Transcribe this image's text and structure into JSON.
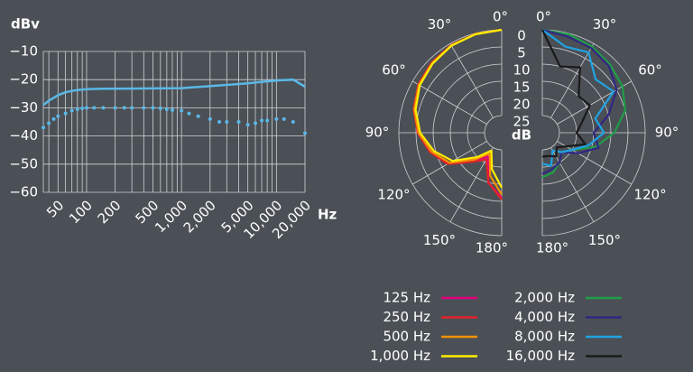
{
  "chart_data": [
    {
      "type": "line",
      "y_label": "dBv",
      "x_label": "Hz",
      "xlog": true,
      "grid": true,
      "xlim": [
        35,
        20000
      ],
      "ylim": [
        -60,
        -10
      ],
      "xticks": [
        50,
        100,
        200,
        500,
        {
          "value": 1000,
          "label": "1,000"
        },
        {
          "value": 2000,
          "label": "2,000"
        },
        {
          "value": 5000,
          "label": "5,000"
        },
        {
          "value": 10000,
          "label": "10,000"
        },
        {
          "value": 20000,
          "label": "20,000"
        }
      ],
      "xgrid": [
        40,
        50,
        60,
        70,
        80,
        90,
        100,
        200,
        300,
        400,
        500,
        600,
        700,
        800,
        900,
        1000,
        2000,
        3000,
        4000,
        5000,
        6000,
        7000,
        8000,
        9000,
        10000,
        20000
      ],
      "yticks": [
        {
          "value": -10,
          "label": "−10"
        },
        {
          "value": -20,
          "label": "−20"
        },
        {
          "value": -30,
          "label": "−30"
        },
        {
          "value": -40,
          "label": "−40"
        },
        {
          "value": -50,
          "label": "−50"
        },
        {
          "value": -60,
          "label": "−60"
        }
      ],
      "series": [
        {
          "color": "#5ab8e6",
          "style": "solid",
          "x": [
            35,
            40,
            50,
            60,
            70,
            80,
            100,
            150,
            200,
            500,
            1000,
            2000,
            5000,
            10000,
            15000,
            20000
          ],
          "values": [
            -29,
            -27.5,
            -25.5,
            -24.5,
            -24,
            -23.7,
            -23.4,
            -23.2,
            -23.2,
            -23.1,
            -23,
            -22.3,
            -21.3,
            -20.3,
            -20,
            -22.5
          ]
        },
        {
          "color": "#5ab8e6",
          "style": "dots",
          "x": [
            35,
            40,
            45,
            50,
            60,
            70,
            80,
            90,
            100,
            120,
            150,
            200,
            250,
            300,
            400,
            500,
            600,
            700,
            800,
            1000,
            1200,
            1500,
            2000,
            2500,
            3000,
            4000,
            5000,
            6000,
            7000,
            8000,
            10000,
            12000,
            15000,
            20000
          ],
          "values": [
            -37,
            -35.5,
            -34,
            -33,
            -32,
            -31,
            -30.5,
            -30.2,
            -30,
            -30,
            -30,
            -30,
            -30,
            -30,
            -30,
            -30,
            -30.2,
            -30.5,
            -30.8,
            -31,
            -32,
            -33,
            -34,
            -35,
            -35,
            -35,
            -36,
            -35.5,
            -34.5,
            -34.5,
            -34,
            -34,
            -35,
            -39
          ]
        }
      ]
    },
    {
      "type": "polar",
      "r_label": "dB",
      "rlim": [
        30,
        0
      ],
      "rticks": [
        0,
        5,
        10,
        15,
        20,
        25
      ],
      "theta_ticks": [
        {
          "value": 0,
          "label": "0°"
        },
        {
          "value": 30,
          "label": "30°"
        },
        {
          "value": 60,
          "label": "60°"
        },
        {
          "value": 90,
          "label": "90°"
        },
        {
          "value": 120,
          "label": "120°"
        },
        {
          "value": 150,
          "label": "150°"
        },
        {
          "value": 180,
          "label": "180°"
        }
      ],
      "theta": [
        0,
        15,
        30,
        45,
        60,
        75,
        90,
        105,
        120,
        135,
        150,
        165,
        180
      ],
      "series": [
        {
          "name": "125 Hz",
          "color": "#e5007d",
          "side": "left",
          "values": [
            0,
            0.2,
            0.6,
            1.2,
            2,
            3.5,
            5.5,
            8.5,
            12,
            18,
            22,
            15,
            11
          ]
        },
        {
          "name": "250 Hz",
          "color": "#e3232b",
          "side": "left",
          "values": [
            0,
            0.2,
            0.5,
            1.1,
            1.9,
            3.4,
            5.5,
            8.3,
            11.8,
            18,
            21,
            15,
            10.5
          ]
        },
        {
          "name": "500 Hz",
          "color": "#f39200",
          "side": "left",
          "values": [
            0,
            0.2,
            0.6,
            1.3,
            2.1,
            3.6,
            5.7,
            8.8,
            12.5,
            19,
            23,
            17,
            12
          ]
        },
        {
          "name": "1,000 Hz",
          "color": "#ffed00",
          "side": "left",
          "values": [
            0,
            0.3,
            0.7,
            1.5,
            2.4,
            4,
            6.2,
            9.5,
            13.5,
            20,
            24,
            19,
            14
          ]
        },
        {
          "name": "2,000 Hz",
          "color": "#1f9d48",
          "side": "right",
          "values": [
            0,
            0.3,
            1,
            2,
            3,
            5,
            9,
            14,
            20,
            22,
            20,
            18,
            17
          ]
        },
        {
          "name": "4,000 Hz",
          "color": "#312783",
          "side": "right",
          "values": [
            0,
            1,
            1.5,
            2.5,
            5,
            10,
            15,
            13,
            18,
            22,
            20,
            19,
            18
          ]
        },
        {
          "name": "8,000 Hz",
          "color": "#1fa3e3",
          "side": "right",
          "values": [
            0,
            4,
            3,
            8,
            6,
            14,
            12,
            16,
            20,
            22,
            24,
            20,
            21
          ]
        },
        {
          "name": "16,000 Hz",
          "color": "#1a1a1a",
          "side": "right",
          "values": [
            0,
            10,
            8,
            15,
            14,
            18,
            20,
            17,
            22,
            24,
            22,
            23,
            23
          ]
        }
      ]
    }
  ]
}
